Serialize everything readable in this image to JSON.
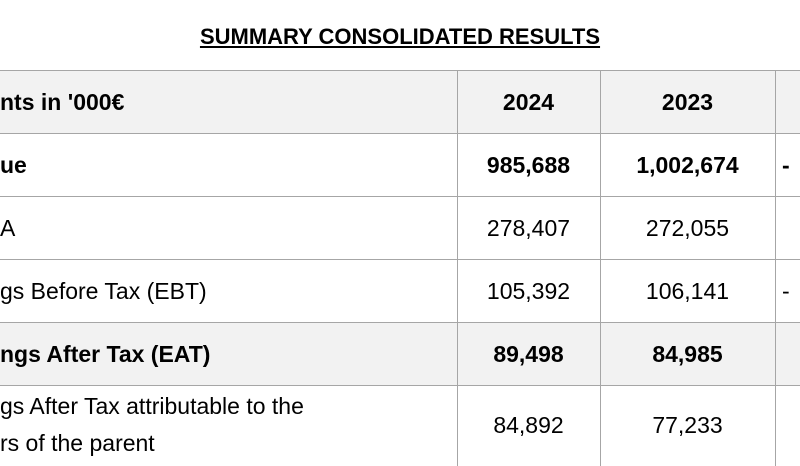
{
  "title": "SUMMARY CONSOLIDATED RESULTS",
  "table": {
    "header": [
      "nts in '000€",
      "2024",
      "2023"
    ],
    "rows": [
      {
        "label": [
          "ue"
        ],
        "cells": [
          "985,688",
          "1,002,674"
        ],
        "change": "-"
      },
      {
        "label": [
          "A"
        ],
        "cells": [
          "278,407",
          "272,055"
        ]
      },
      {
        "label": [
          "gs Before Tax (EBT)"
        ],
        "cells": [
          "105,392",
          "106,141"
        ],
        "change": "-"
      },
      {
        "label": [
          "ngs After Tax (EAT)"
        ],
        "cells": [
          "89,498",
          "84,985"
        ]
      },
      {
        "label": [
          "gs After Tax attributable to the",
          "rs of the parent"
        ],
        "cells": [
          "84,892",
          "77,233"
        ]
      }
    ]
  }
}
